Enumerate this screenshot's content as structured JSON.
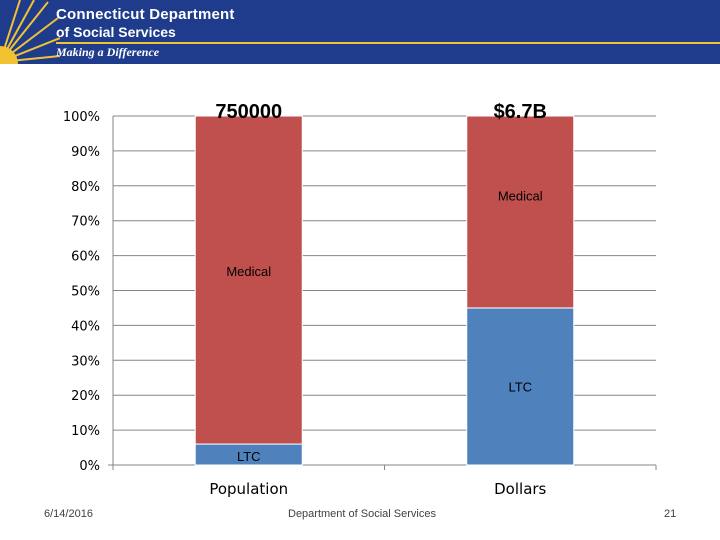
{
  "header": {
    "org_line1": "Connecticut Department",
    "org_line2": "of Social Services",
    "tagline": "Making a Difference"
  },
  "colors": {
    "medical": "#c0504d",
    "ltc": "#4f81bd",
    "header_bg": "#1f3c8c",
    "accent": "#f1c232"
  },
  "chart_data": {
    "type": "bar",
    "stacked": true,
    "percent": true,
    "categories": [
      "Population",
      "Dollars"
    ],
    "top_labels": [
      "750000",
      "$6.7B"
    ],
    "series": [
      {
        "name": "LTC",
        "values": [
          6,
          45
        ]
      },
      {
        "name": "Medical",
        "values": [
          94,
          55
        ]
      }
    ],
    "segment_labels": [
      [
        "LTC",
        "Medical"
      ],
      [
        "LTC",
        "Medical"
      ]
    ],
    "yticks": [
      "0%",
      "10%",
      "20%",
      "30%",
      "40%",
      "50%",
      "60%",
      "70%",
      "80%",
      "90%",
      "100%"
    ],
    "ylim": [
      0,
      100
    ],
    "grid": true
  },
  "footer": {
    "date": "6/14/2016",
    "center": "Department of Social Services",
    "page": "21"
  }
}
